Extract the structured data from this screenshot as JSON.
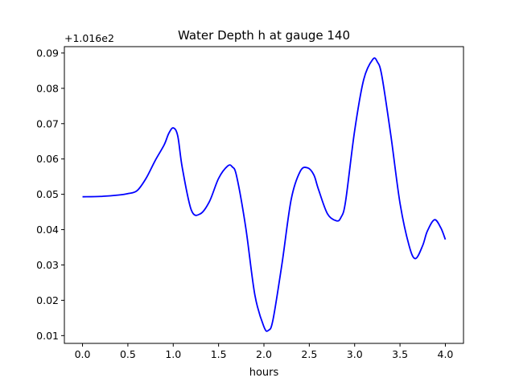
{
  "chart_data": {
    "type": "line",
    "title": "Water Depth h at gauge 140",
    "xlabel": "hours",
    "ylabel": "",
    "offset_label": "+1.016e2",
    "xlim": [
      -0.2,
      4.2
    ],
    "ylim": [
      0.0078,
      0.0918
    ],
    "xticks": [
      "0.0",
      "0.5",
      "1.0",
      "1.5",
      "2.0",
      "2.5",
      "3.0",
      "3.5",
      "4.0"
    ],
    "xtick_values": [
      0.0,
      0.5,
      1.0,
      1.5,
      2.0,
      2.5,
      3.0,
      3.5,
      4.0
    ],
    "yticks": [
      "0.01",
      "0.02",
      "0.03",
      "0.04",
      "0.05",
      "0.06",
      "0.07",
      "0.08",
      "0.09"
    ],
    "ytick_values": [
      0.01,
      0.02,
      0.03,
      0.04,
      0.05,
      0.06,
      0.07,
      0.08,
      0.09
    ],
    "grid": false,
    "series": [
      {
        "color": "#0000ff",
        "x": [
          0.0,
          0.2,
          0.4,
          0.5,
          0.6,
          0.7,
          0.8,
          0.9,
          0.95,
          1.0,
          1.05,
          1.1,
          1.2,
          1.3,
          1.4,
          1.5,
          1.6,
          1.65,
          1.7,
          1.8,
          1.9,
          2.0,
          2.05,
          2.1,
          2.2,
          2.3,
          2.4,
          2.48,
          2.55,
          2.6,
          2.7,
          2.8,
          2.85,
          2.9,
          3.0,
          3.1,
          3.2,
          3.25,
          3.3,
          3.4,
          3.5,
          3.6,
          3.67,
          3.75,
          3.8,
          3.88,
          3.95,
          4.0
        ],
        "values": [
          0.0493,
          0.0494,
          0.0498,
          0.0502,
          0.051,
          0.0545,
          0.0595,
          0.064,
          0.0672,
          0.0688,
          0.0665,
          0.0575,
          0.0455,
          0.0445,
          0.048,
          0.0545,
          0.058,
          0.0578,
          0.055,
          0.0405,
          0.0215,
          0.0125,
          0.0115,
          0.0145,
          0.0305,
          0.0485,
          0.0565,
          0.0575,
          0.0555,
          0.0515,
          0.0445,
          0.0425,
          0.0435,
          0.048,
          0.068,
          0.0825,
          0.0882,
          0.0875,
          0.0835,
          0.0665,
          0.0475,
          0.0355,
          0.0318,
          0.0355,
          0.0395,
          0.0428,
          0.0405,
          0.0372
        ]
      }
    ]
  }
}
